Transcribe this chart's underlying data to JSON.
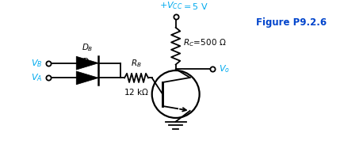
{
  "fig_width": 4.34,
  "fig_height": 1.92,
  "dpi": 100,
  "bg_color": "#ffffff",
  "circuit_color": "#000000",
  "label_color": "#00aaee",
  "figure_label": "Figure P9.2.6",
  "figure_label_color": "#0044cc",
  "transistor_circle_r": 0.28
}
